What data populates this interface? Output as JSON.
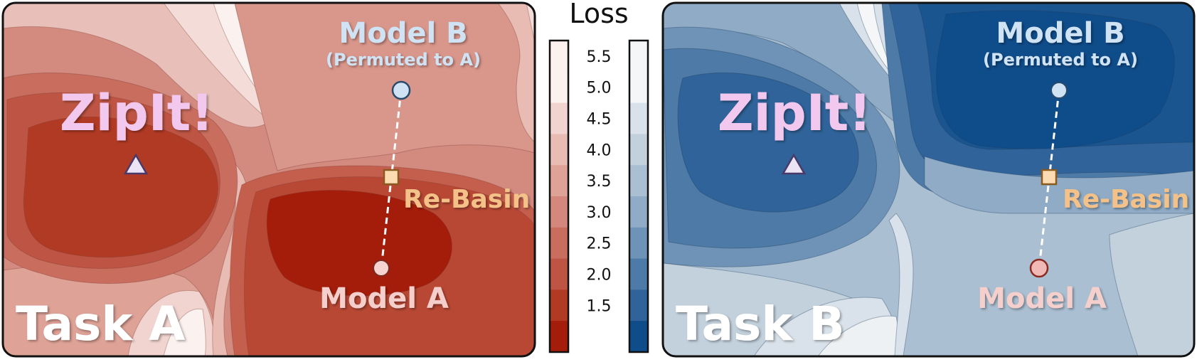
{
  "colorbar": {
    "title": "Loss",
    "ticks": [
      "5.5",
      "5.0",
      "4.5",
      "4.0",
      "3.5",
      "3.0",
      "2.5",
      "2.0",
      "1.5"
    ],
    "red_scale": [
      "#fbf1ef",
      "#f1d4cf",
      "#e8bbb3",
      "#dea297",
      "#d4887d",
      "#c96d5e",
      "#be5443",
      "#b13a24",
      "#a41c0a"
    ],
    "blue_scale": [
      "#f4f6f8",
      "#d9e2ea",
      "#c3d1dd",
      "#aabfd2",
      "#8fabc6",
      "#6e93b6",
      "#4d7aa6",
      "#2f6399",
      "#0f4c8a"
    ]
  },
  "panel_a": {
    "task_label": "Task A",
    "zipit_label": "ZipIt!",
    "model_b_label": "Model B",
    "model_b_sublabel": "(Permuted to A)",
    "rebasin_label": "Re-Basin",
    "model_a_label": "Model A",
    "colors": {
      "model_b_marker": "#cfe3f4",
      "model_a_marker": "#f6d3d1",
      "rebasin_marker": "#fbdcb2",
      "zipit_marker": "#ece3f5"
    }
  },
  "panel_b": {
    "task_label": "Task B",
    "zipit_label": "ZipIt!",
    "model_b_label": "Model B",
    "model_b_sublabel": "(Permuted to A)",
    "rebasin_label": "Re-Basin",
    "model_a_label": "Model A",
    "colors": {
      "model_b_marker": "#cfe3f4",
      "model_a_marker": "#f0b9b6",
      "rebasin_marker": "#fbdcb2",
      "zipit_marker": "#ece3f5"
    }
  },
  "label_colors": {
    "zipit": "#f3c8ef",
    "model_b": "#cfe3f4",
    "rebasin": "#f4c189",
    "model_a": "#f4cfcc",
    "task": "#ffffff"
  }
}
